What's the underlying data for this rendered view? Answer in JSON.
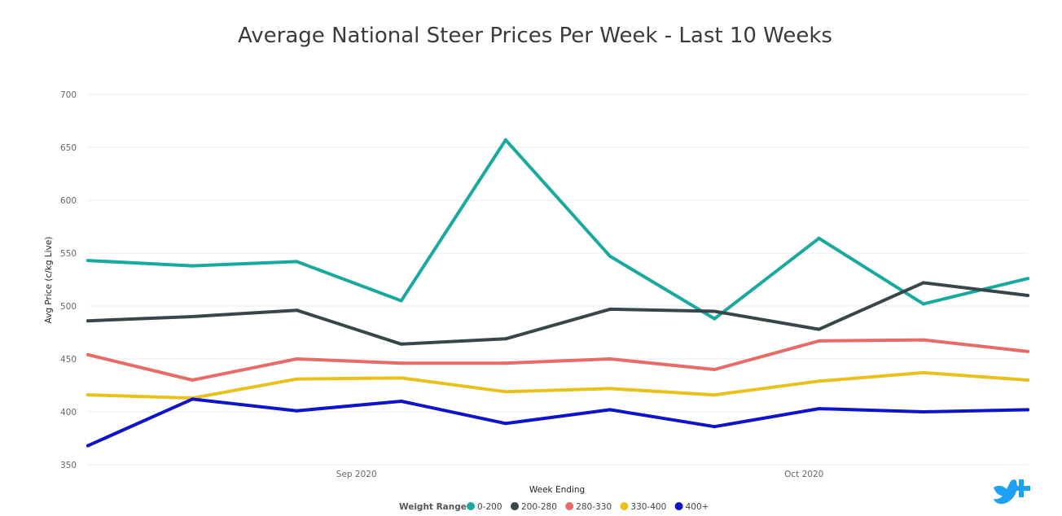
{
  "chart_data": {
    "type": "line",
    "title": "Average National Steer Prices Per Week - Last 10 Weeks",
    "xlabel": "Week Ending",
    "ylabel": "Avg Price (c/kg Live)",
    "ylim": [
      350,
      700
    ],
    "yticks": [
      700,
      650,
      600,
      550,
      500,
      450,
      400,
      350
    ],
    "xlim": [
      "2020-08-14",
      "2020-10-16"
    ],
    "x": [
      "2020-08-14",
      "2020-08-21",
      "2020-08-28",
      "2020-09-04",
      "2020-09-11",
      "2020-09-18",
      "2020-09-25",
      "2020-10-02",
      "2020-10-09",
      "2020-10-16"
    ],
    "xticks": [
      {
        "date": "2020-09-01",
        "label": "Sep 2020"
      },
      {
        "date": "2020-10-01",
        "label": "Oct 2020"
      }
    ],
    "grid": true,
    "legend_title": "Weight Range",
    "legend_position": "bottom",
    "series": [
      {
        "name": "0-200",
        "color": "#1aa99f",
        "values": [
          543,
          538,
          542,
          505,
          657,
          547,
          488,
          564,
          502,
          526
        ]
      },
      {
        "name": "200-280",
        "color": "#374649",
        "values": [
          486,
          490,
          496,
          464,
          469,
          497,
          495,
          478,
          522,
          510
        ]
      },
      {
        "name": "280-330",
        "color": "#e66c68",
        "values": [
          454,
          430,
          450,
          446,
          446,
          450,
          440,
          467,
          468,
          457
        ]
      },
      {
        "name": "330-400",
        "color": "#e8c11e",
        "values": [
          416,
          413,
          431,
          432,
          419,
          422,
          416,
          429,
          437,
          430
        ]
      },
      {
        "name": "400+",
        "color": "#0e14c8",
        "values": [
          368,
          412,
          401,
          410,
          389,
          402,
          386,
          403,
          400,
          402
        ]
      }
    ]
  },
  "logo": {
    "name": "twitter-plus-logo",
    "color": "#1da1f2"
  }
}
